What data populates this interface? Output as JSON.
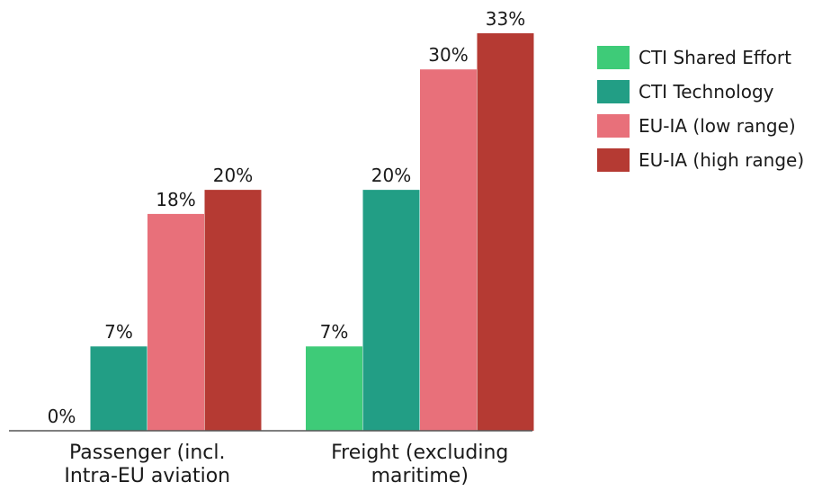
{
  "chart_data": {
    "type": "bar",
    "title": "",
    "xlabel": "",
    "ylabel": "",
    "ylim": [
      0,
      33
    ],
    "grid": false,
    "legend_position": "top-right",
    "categories": [
      [
        "Passenger (incl.",
        "Intra-EU aviation"
      ],
      [
        "Freight (excluding",
        "maritime)"
      ]
    ],
    "series": [
      {
        "name": "CTI Shared Effort",
        "color": "#3ecb78",
        "values": [
          0,
          7
        ],
        "labels": [
          "0%",
          "7%"
        ]
      },
      {
        "name": "CTI Technology",
        "color": "#229e85",
        "values": [
          7,
          20
        ],
        "labels": [
          "7%",
          "20%"
        ]
      },
      {
        "name": "EU-IA (low range)",
        "color": "#e8707a",
        "values": [
          18,
          30
        ],
        "labels": [
          "18%",
          "30%"
        ]
      },
      {
        "name": "EU-IA (high range)",
        "color": "#b53a33",
        "values": [
          20,
          33
        ],
        "labels": [
          "20%",
          "33%"
        ]
      }
    ]
  }
}
